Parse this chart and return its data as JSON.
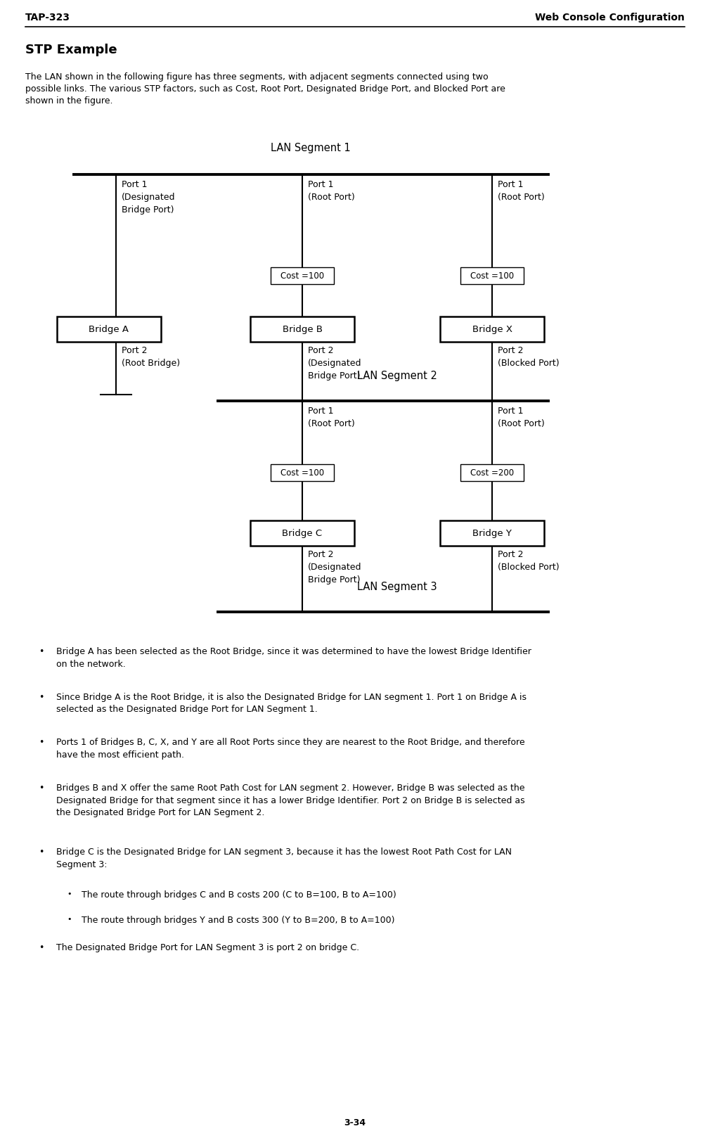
{
  "header_left": "TAP-323",
  "header_right": "Web Console Configuration",
  "section_title": "STP Example",
  "intro_line1": "The LAN shown in the following figure has three segments, with adjacent segments connected using two",
  "intro_line2": "possible links. The various STP factors, such as Cost, Root Port, Designated Bridge Port, and Blocked Port are",
  "intro_line3": "shown in the figure.",
  "bullet_points": [
    "Bridge A has been selected as the Root Bridge, since it was determined to have the lowest Bridge Identifier\non the network.",
    "Since Bridge A is the Root Bridge, it is also the Designated Bridge for LAN segment 1. Port 1 on Bridge A is\nselected as the Designated Bridge Port for LAN Segment 1.",
    "Ports 1 of Bridges B, C, X, and Y are all Root Ports since they are nearest to the Root Bridge, and therefore\nhave the most efficient path.",
    "Bridges B and X offer the same Root Path Cost for LAN segment 2. However, Bridge B was selected as the\nDesignated Bridge for that segment since it has a lower Bridge Identifier. Port 2 on Bridge B is selected as\nthe Designated Bridge Port for LAN Segment 2.",
    "Bridge C is the Designated Bridge for LAN segment 3, because it has the lowest Root Path Cost for LAN\nSegment 3:",
    "The route through bridges C and B costs 200 (C to B=100, B to A=100)",
    "The route through bridges Y and B costs 300 (Y to B=200, B to A=100)",
    "The Designated Bridge Port for LAN Segment 3 is port 2 on bridge C."
  ],
  "sub_bullets": [
    5,
    6
  ],
  "page_number": "3-34",
  "bg_color": "#ffffff",
  "diagram": {
    "lan1_label": "LAN Segment 1",
    "lan2_label": "LAN Segment 2",
    "lan3_label": "LAN Segment 3",
    "bridge_a_label": "Bridge A",
    "bridge_b_label": "Bridge B",
    "bridge_x_label": "Bridge X",
    "bridge_c_label": "Bridge C",
    "bridge_y_label": "Bridge Y",
    "bridge_a_port1": "Port 1\n(Designated\nBridge Port)",
    "bridge_a_port2": "Port 2\n(Root Bridge)",
    "bridge_b_port1": "Port 1\n(Root Port)",
    "bridge_b_port2": "Port 2\n(Designated\nBridge Port)",
    "bridge_x_port1": "Port 1\n(Root Port)",
    "bridge_x_port2": "Port 2\n(Blocked Port)",
    "bridge_c_port1": "Port 1\n(Root Port)",
    "bridge_c_port2": "Port 2\n(Designated\nBridge Port)",
    "bridge_y_port1": "Port 1\n(Root Port)",
    "bridge_y_port2": "Port 2\n(Blocked Port)",
    "cost_b_label": "Cost =100",
    "cost_x_label": "Cost =100",
    "cost_c_label": "Cost =100",
    "cost_y_label": "Cost =200"
  }
}
